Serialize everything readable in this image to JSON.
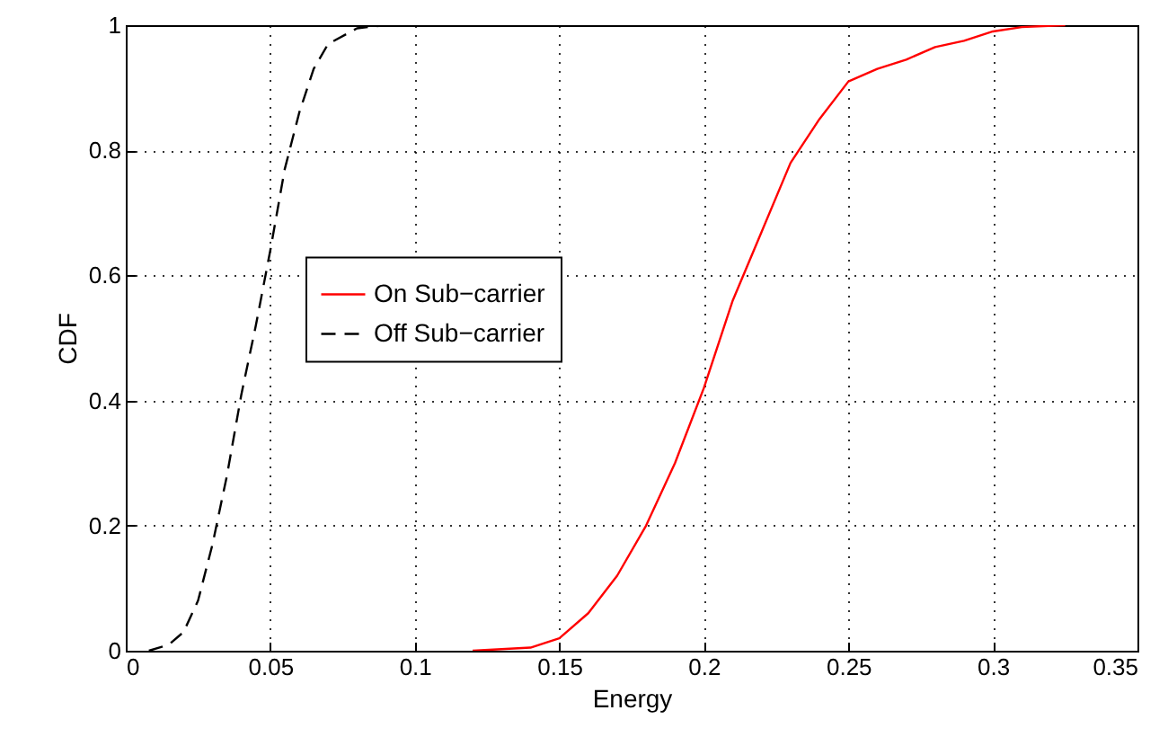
{
  "chart_data": {
    "type": "line",
    "xlabel": "Energy",
    "ylabel": "CDF",
    "xlim": [
      0,
      0.35
    ],
    "ylim": [
      0,
      1
    ],
    "xticks": [
      0,
      0.05,
      0.1,
      0.15,
      0.2,
      0.25,
      0.3,
      0.35
    ],
    "yticks": [
      0,
      0.2,
      0.4,
      0.6,
      0.8,
      1
    ],
    "grid": true,
    "legend": "left",
    "series": [
      {
        "name": "On Sub−carrier",
        "color": "#ff0000",
        "line_style": "solid",
        "x": [
          0.12,
          0.14,
          0.15,
          0.16,
          0.17,
          0.18,
          0.19,
          0.2,
          0.21,
          0.22,
          0.23,
          0.24,
          0.25,
          0.26,
          0.27,
          0.28,
          0.29,
          0.3,
          0.31,
          0.325
        ],
        "values": [
          0,
          0.005,
          0.02,
          0.06,
          0.12,
          0.2,
          0.3,
          0.42,
          0.56,
          0.67,
          0.78,
          0.85,
          0.91,
          0.93,
          0.945,
          0.965,
          0.975,
          0.99,
          0.997,
          1
        ]
      },
      {
        "name": "Off Sub−carrier",
        "color": "#000000",
        "line_style": "dashed",
        "x": [
          0.008,
          0.015,
          0.02,
          0.025,
          0.03,
          0.035,
          0.04,
          0.045,
          0.05,
          0.055,
          0.06,
          0.065,
          0.07,
          0.08,
          0.09
        ],
        "values": [
          0,
          0.01,
          0.03,
          0.08,
          0.17,
          0.28,
          0.41,
          0.52,
          0.64,
          0.77,
          0.86,
          0.93,
          0.97,
          0.995,
          1
        ]
      }
    ]
  }
}
